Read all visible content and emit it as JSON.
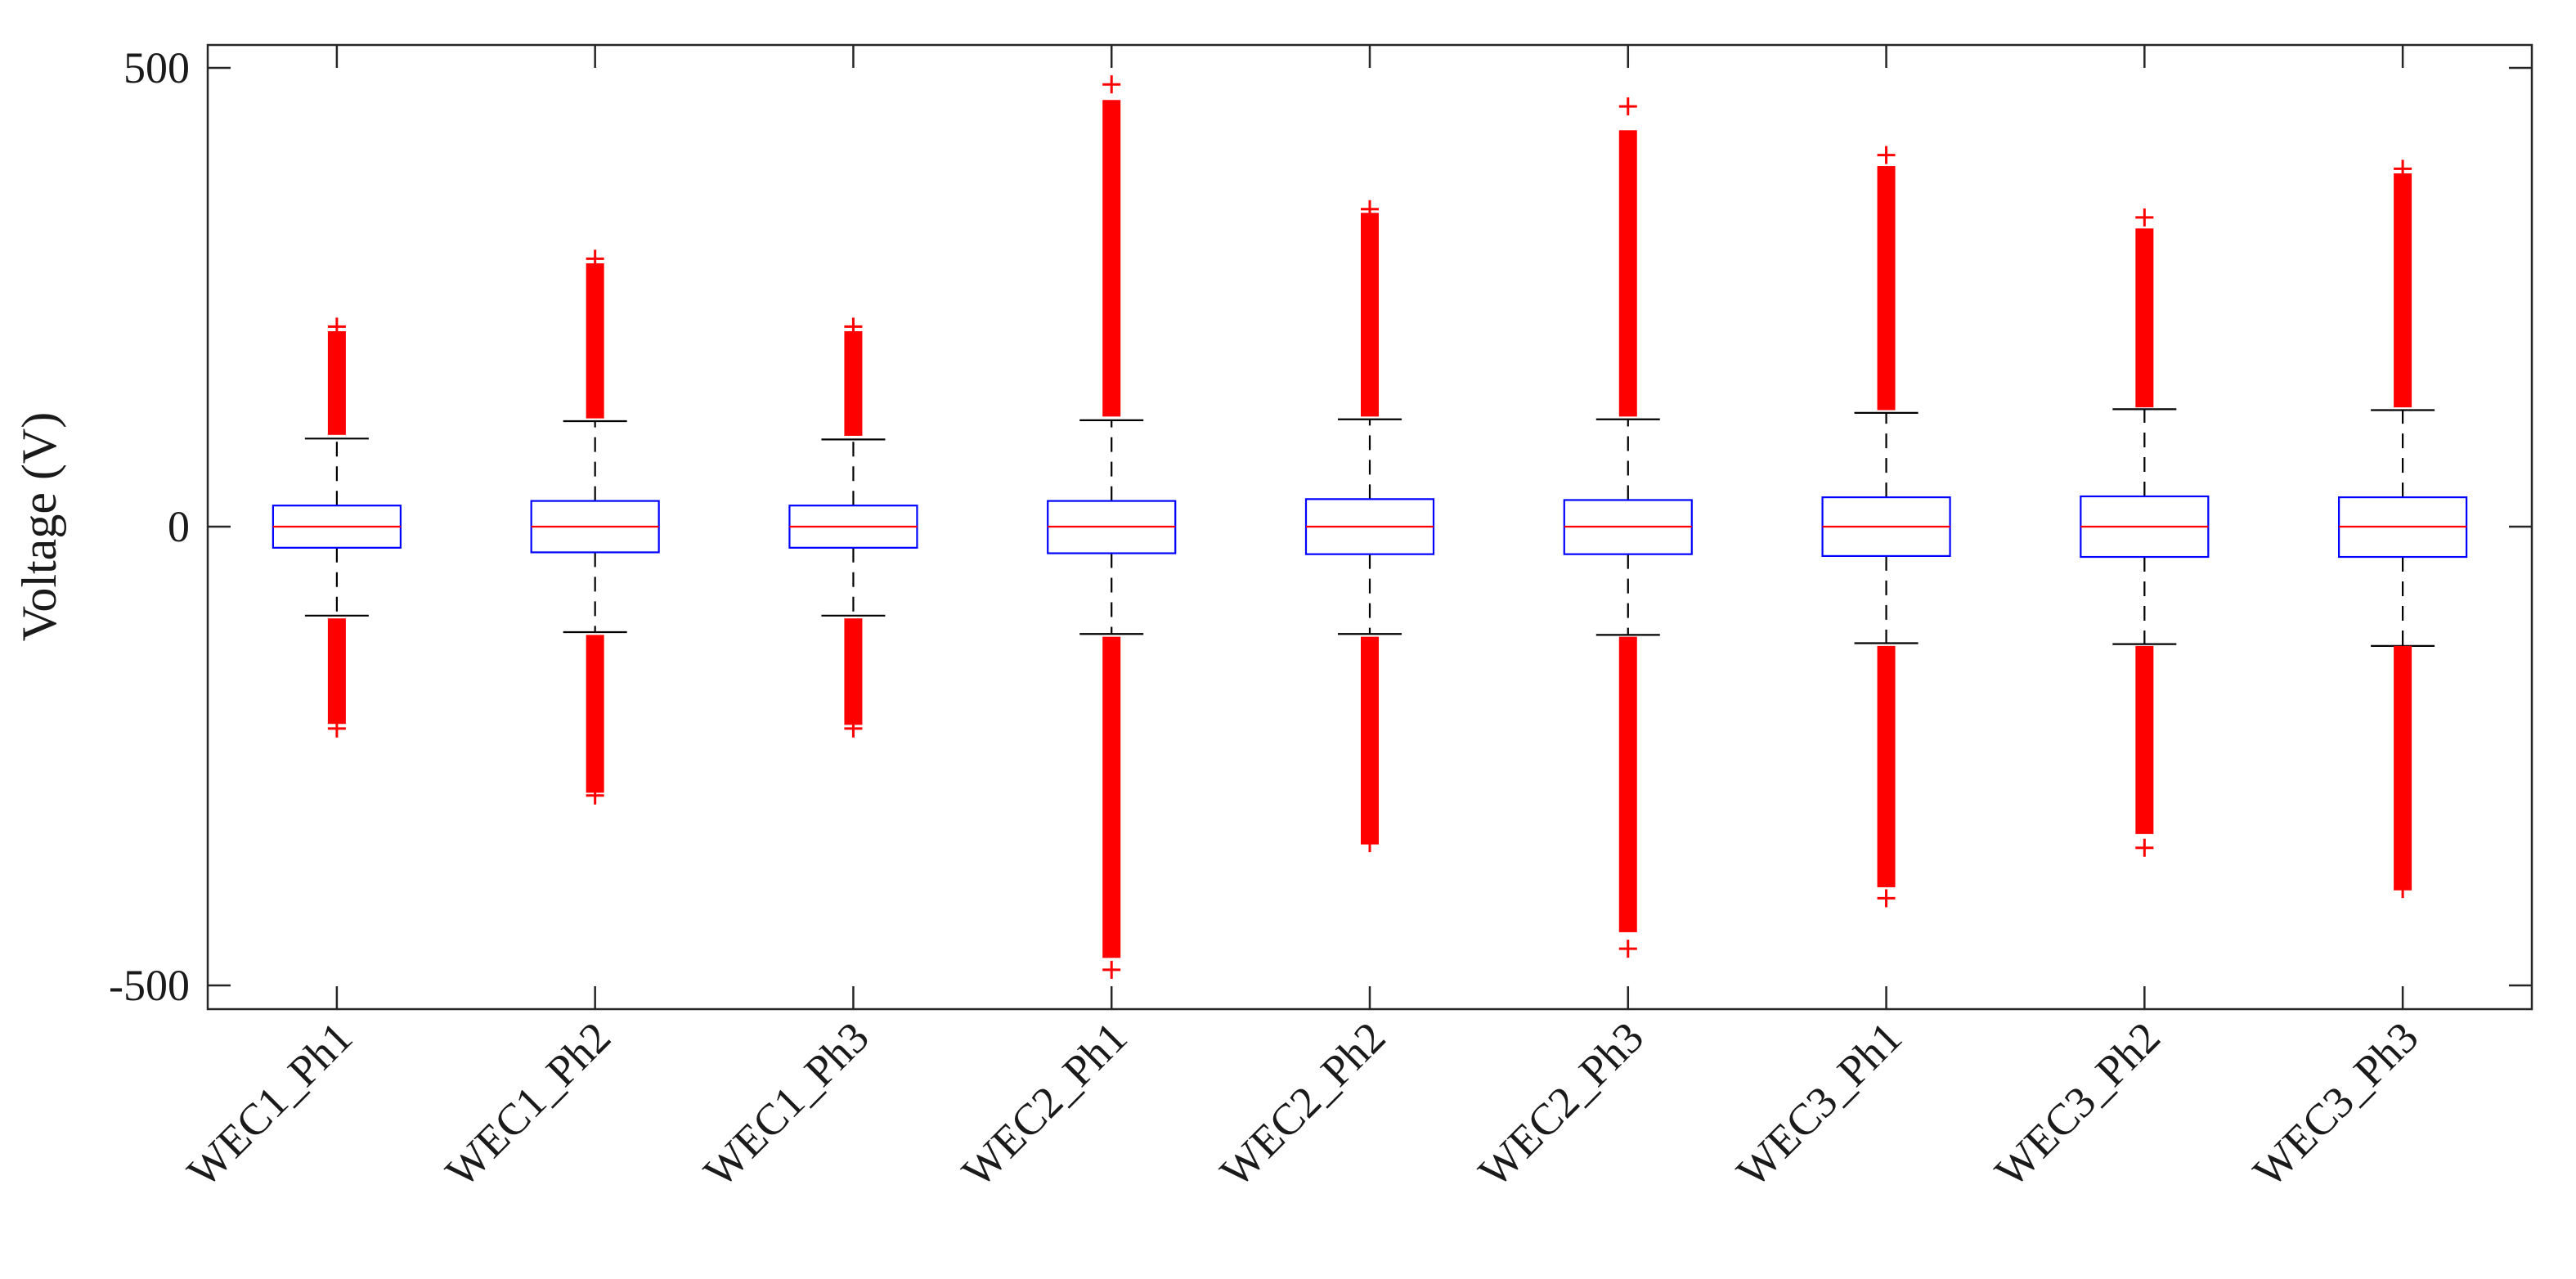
{
  "chart_data": {
    "type": "box",
    "title": "",
    "xlabel": "",
    "ylabel": "Voltage (V)",
    "ylim": [
      -525,
      500
    ],
    "yticks": [
      -500,
      0,
      500
    ],
    "ytick_labels": [
      "-500",
      "0",
      "500"
    ],
    "grid": false,
    "legend": "none",
    "colors": {
      "box": "#0000ff",
      "median": "#ff0000",
      "whisker": "#000000",
      "outlier": "#ff0000",
      "axis": "#262626"
    },
    "categories": [
      "WEC1_Ph1",
      "WEC1_Ph2",
      "WEC1_Ph3",
      "WEC2_Ph1",
      "WEC2_Ph2",
      "WEC2_Ph3",
      "WEC3_Ph1",
      "WEC3_Ph2",
      "WEC3_Ph3"
    ],
    "series": [
      {
        "name": "WEC1_Ph1",
        "q1": -23,
        "median": 0,
        "q3": 23,
        "whisker_low": -97,
        "whisker_high": 96,
        "outlier_low": [
          -215,
          -100
        ],
        "outlier_high": [
          100,
          213
        ],
        "outlier_low_extreme": -220,
        "outlier_high_extreme": 218
      },
      {
        "name": "WEC1_Ph2",
        "q1": -28,
        "median": 0,
        "q3": 28,
        "whisker_low": -115,
        "whisker_high": 115,
        "outlier_low": [
          -290,
          -118
        ],
        "outlier_high": [
          118,
          287
        ],
        "outlier_low_extreme": -293,
        "outlier_high_extreme": 292
      },
      {
        "name": "WEC1_Ph3",
        "q1": -23,
        "median": 0,
        "q3": 23,
        "whisker_low": -97,
        "whisker_high": 95,
        "outlier_low": [
          -216,
          -100
        ],
        "outlier_high": [
          99,
          213
        ],
        "outlier_low_extreme": -220,
        "outlier_high_extreme": 218
      },
      {
        "name": "WEC2_Ph1",
        "q1": -29,
        "median": 0,
        "q3": 28,
        "whisker_low": -117,
        "whisker_high": 116,
        "outlier_low": [
          -470,
          -120
        ],
        "outlier_high": [
          120,
          465
        ],
        "outlier_low_extreme": -483,
        "outlier_high_extreme": 482
      },
      {
        "name": "WEC2_Ph2",
        "q1": -30,
        "median": 0,
        "q3": 30,
        "whisker_low": -117,
        "whisker_high": 117,
        "outlier_low": [
          -345,
          -120
        ],
        "outlier_high": [
          120,
          342
        ],
        "outlier_low_extreme": -345,
        "outlier_high_extreme": 346
      },
      {
        "name": "WEC2_Ph3",
        "q1": -30,
        "median": 0,
        "q3": 29,
        "whisker_low": -118,
        "whisker_high": 117,
        "outlier_low": [
          -442,
          -120
        ],
        "outlier_high": [
          120,
          432
        ],
        "outlier_low_extreme": -460,
        "outlier_high_extreme": 458
      },
      {
        "name": "WEC3_Ph1",
        "q1": -32,
        "median": 0,
        "q3": 32,
        "whisker_low": -127,
        "whisker_high": 124,
        "outlier_low": [
          -393,
          -130
        ],
        "outlier_high": [
          127,
          393
        ],
        "outlier_low_extreme": -405,
        "outlier_high_extreme": 405
      },
      {
        "name": "WEC3_Ph2",
        "q1": -33,
        "median": 0,
        "q3": 33,
        "whisker_low": -128,
        "whisker_high": 128,
        "outlier_low": [
          -335,
          -130
        ],
        "outlier_high": [
          130,
          325
        ],
        "outlier_low_extreme": -350,
        "outlier_high_extreme": 337
      },
      {
        "name": "WEC3_Ph3",
        "q1": -33,
        "median": 0,
        "q3": 32,
        "whisker_low": -130,
        "whisker_high": 127,
        "outlier_low": [
          -395,
          -130
        ],
        "outlier_high": [
          130,
          385
        ],
        "outlier_low_extreme": -395,
        "outlier_high_extreme": 390
      }
    ]
  }
}
